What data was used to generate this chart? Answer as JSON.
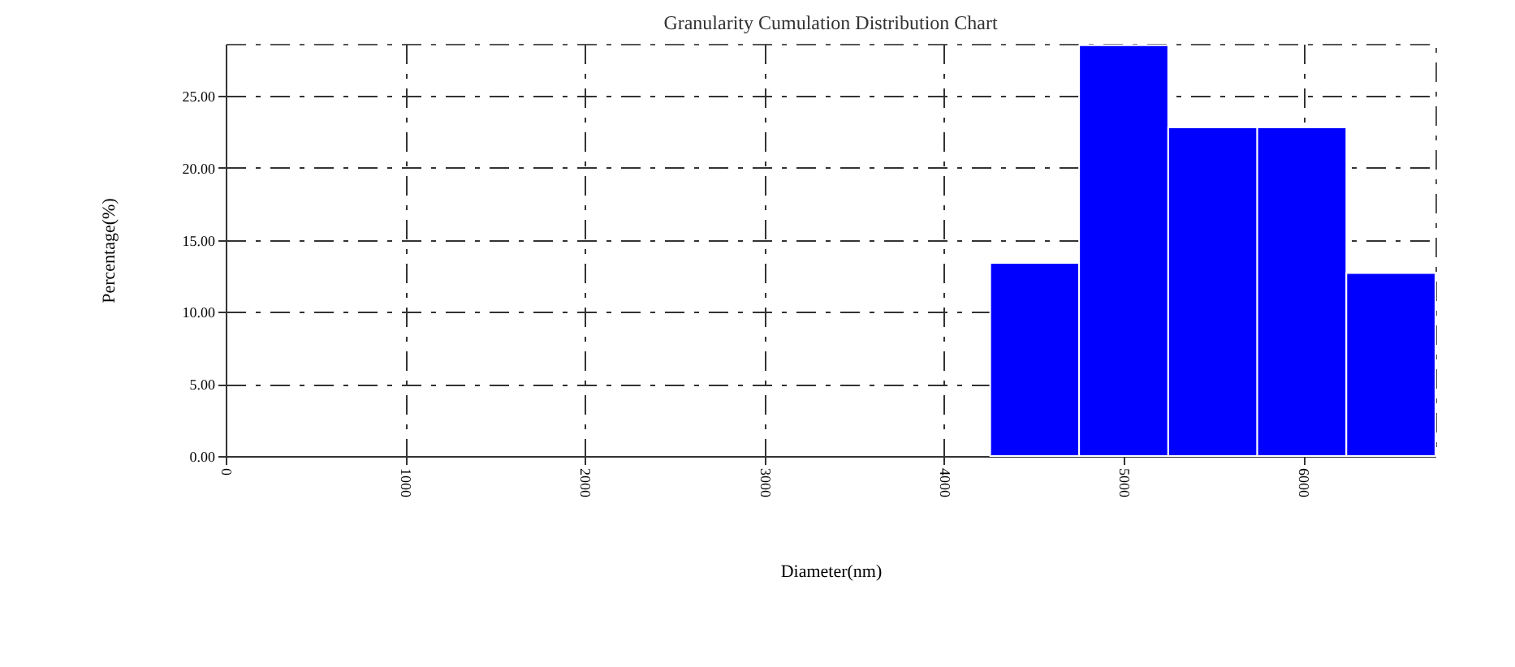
{
  "chart_data": {
    "type": "histogram",
    "title": "Granularity Cumulation Distribution  Chart",
    "xlabel": "Diameter(nm)",
    "ylabel": "Percentage(%)",
    "bins": [
      4257,
      4752,
      5248,
      5744,
      6240,
      6736
    ],
    "values": [
      13.4,
      28.5,
      22.8,
      22.8,
      12.7
    ],
    "color": "#0000ff",
    "xlim": [
      0,
      6736
    ],
    "xticks": [
      0,
      1000,
      2000,
      3000,
      4000,
      5000,
      6000
    ],
    "ylim": [
      0,
      28.6
    ],
    "yticks": [
      {
        "value": 0,
        "label": "0.00"
      },
      {
        "value": 5,
        "label": "5.00"
      },
      {
        "value": 10,
        "label": "10.00"
      },
      {
        "value": 15,
        "label": "15.00"
      },
      {
        "value": 20,
        "label": "20.00"
      },
      {
        "value": 25,
        "label": "25.00"
      }
    ],
    "grid": true,
    "line_style": "dashed"
  }
}
